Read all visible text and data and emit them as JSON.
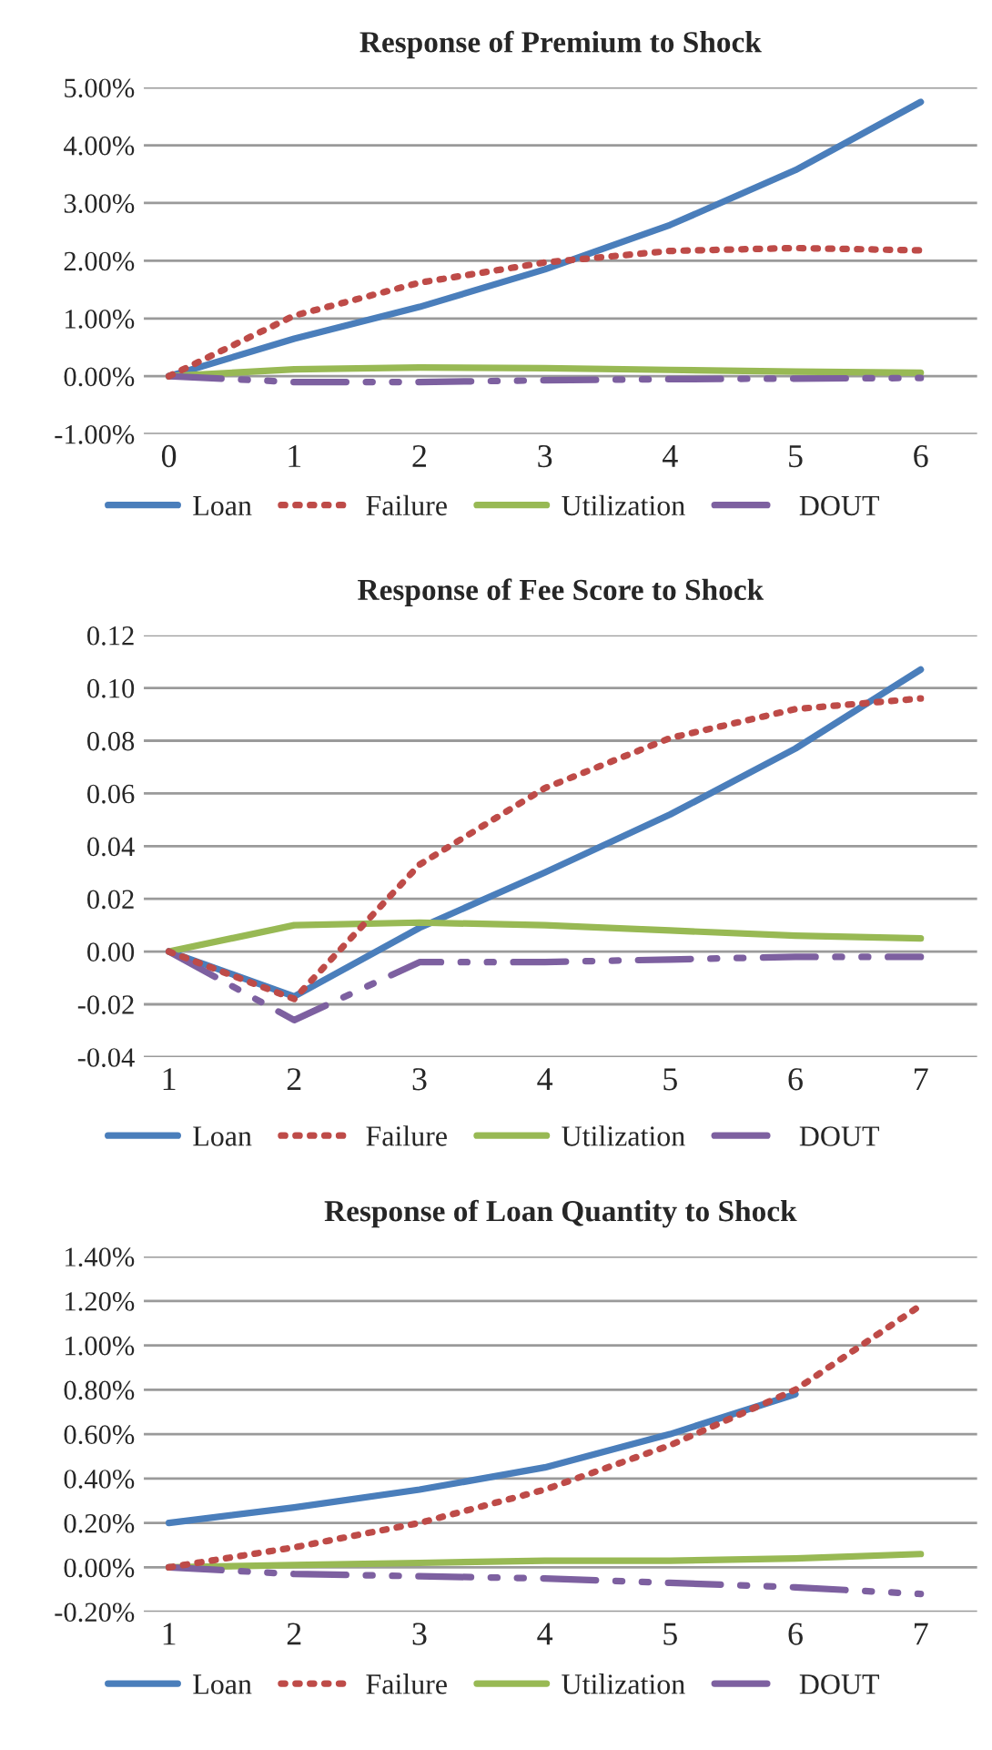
{
  "chart_data": [
    {
      "type": "line",
      "title": "Response of Premium to Shock",
      "categories": [
        "0",
        "1",
        "2",
        "3",
        "4",
        "5",
        "6"
      ],
      "series": [
        {
          "name": "Loan",
          "color": "#4a7ebb",
          "line_style": "solid",
          "values": [
            0,
            0.65,
            1.2,
            1.85,
            2.62,
            3.57,
            4.75
          ]
        },
        {
          "name": "Failure",
          "color": "#be4b48",
          "line_style": "dotted",
          "values": [
            0,
            1.05,
            1.62,
            1.97,
            2.17,
            2.22,
            2.18
          ]
        },
        {
          "name": "Utilization",
          "color": "#98b954",
          "line_style": "solid",
          "values": [
            0,
            0.12,
            0.15,
            0.14,
            0.11,
            0.08,
            0.06
          ]
        },
        {
          "name": "DOUT",
          "color": "#7d60a0",
          "line_style": "dashed",
          "values": [
            0,
            -0.1,
            -0.1,
            -0.07,
            -0.05,
            -0.04,
            -0.03
          ]
        }
      ],
      "ylim": [
        -1,
        5
      ],
      "yticks": [
        {
          "value": -1,
          "label": "-1.00%"
        },
        {
          "value": 0,
          "label": "0.00%"
        },
        {
          "value": 1,
          "label": "1.00%"
        },
        {
          "value": 2,
          "label": "2.00%"
        },
        {
          "value": 3,
          "label": "3.00%"
        },
        {
          "value": 4,
          "label": "4.00%"
        },
        {
          "value": 5,
          "label": "5.00%"
        }
      ],
      "grid": "y",
      "legend": "bottom",
      "marker": "none"
    },
    {
      "type": "line",
      "title": "Response of Fee Score to Shock",
      "categories": [
        "1",
        "2",
        "3",
        "4",
        "5",
        "6",
        "7"
      ],
      "series": [
        {
          "name": "Loan",
          "color": "#4a7ebb",
          "line_style": "solid",
          "values": [
            0,
            -0.017,
            0.009,
            0.03,
            0.052,
            0.077,
            0.107
          ]
        },
        {
          "name": "Failure",
          "color": "#be4b48",
          "line_style": "dotted",
          "values": [
            0,
            -0.018,
            0.033,
            0.062,
            0.081,
            0.092,
            0.096
          ]
        },
        {
          "name": "Utilization",
          "color": "#98b954",
          "line_style": "solid",
          "values": [
            0,
            0.01,
            0.011,
            0.01,
            0.008,
            0.006,
            0.005
          ]
        },
        {
          "name": "DOUT",
          "color": "#7d60a0",
          "line_style": "dashed",
          "values": [
            0,
            -0.026,
            -0.004,
            -0.004,
            -0.003,
            -0.002,
            -0.002
          ]
        }
      ],
      "ylim": [
        -0.04,
        0.12
      ],
      "yticks": [
        {
          "value": -0.04,
          "label": "-0.04"
        },
        {
          "value": -0.02,
          "label": "-0.02"
        },
        {
          "value": 0,
          "label": "0.00"
        },
        {
          "value": 0.02,
          "label": "0.02"
        },
        {
          "value": 0.04,
          "label": "0.04"
        },
        {
          "value": 0.06,
          "label": "0.06"
        },
        {
          "value": 0.08,
          "label": "0.08"
        },
        {
          "value": 0.1,
          "label": "0.10"
        },
        {
          "value": 0.12,
          "label": "0.12"
        }
      ],
      "grid": "y",
      "legend": "bottom",
      "marker": "none"
    },
    {
      "type": "line",
      "title": "Response of Loan Quantity to Shock",
      "categories": [
        "1",
        "2",
        "3",
        "4",
        "5",
        "6",
        "7"
      ],
      "series": [
        {
          "name": "Loan",
          "color": "#4a7ebb",
          "line_style": "solid",
          "values": [
            0.2,
            0.27,
            0.35,
            0.45,
            0.6,
            0.78,
            null
          ]
        },
        {
          "name": "Failure",
          "color": "#be4b48",
          "line_style": "dotted",
          "values": [
            0,
            0.09,
            0.2,
            0.35,
            0.55,
            0.8,
            1.18
          ]
        },
        {
          "name": "Utilization",
          "color": "#98b954",
          "line_style": "solid",
          "values": [
            0,
            0.01,
            0.02,
            0.03,
            0.03,
            0.04,
            0.06
          ]
        },
        {
          "name": "DOUT",
          "color": "#7d60a0",
          "line_style": "dashed",
          "values": [
            0,
            -0.03,
            -0.04,
            -0.05,
            -0.07,
            -0.09,
            -0.12
          ]
        }
      ],
      "ylim": [
        -0.2,
        1.4
      ],
      "yticks": [
        {
          "value": -0.2,
          "label": "-0.20%"
        },
        {
          "value": 0,
          "label": "0.00%"
        },
        {
          "value": 0.2,
          "label": "0.20%"
        },
        {
          "value": 0.4,
          "label": "0.40%"
        },
        {
          "value": 0.6,
          "label": "0.60%"
        },
        {
          "value": 0.8,
          "label": "0.80%"
        },
        {
          "value": 1,
          "label": "1.00%"
        },
        {
          "value": 1.2,
          "label": "1.20%"
        },
        {
          "value": 1.4,
          "label": "1.40%"
        }
      ],
      "grid": "y",
      "legend": "bottom",
      "marker": "none"
    }
  ]
}
